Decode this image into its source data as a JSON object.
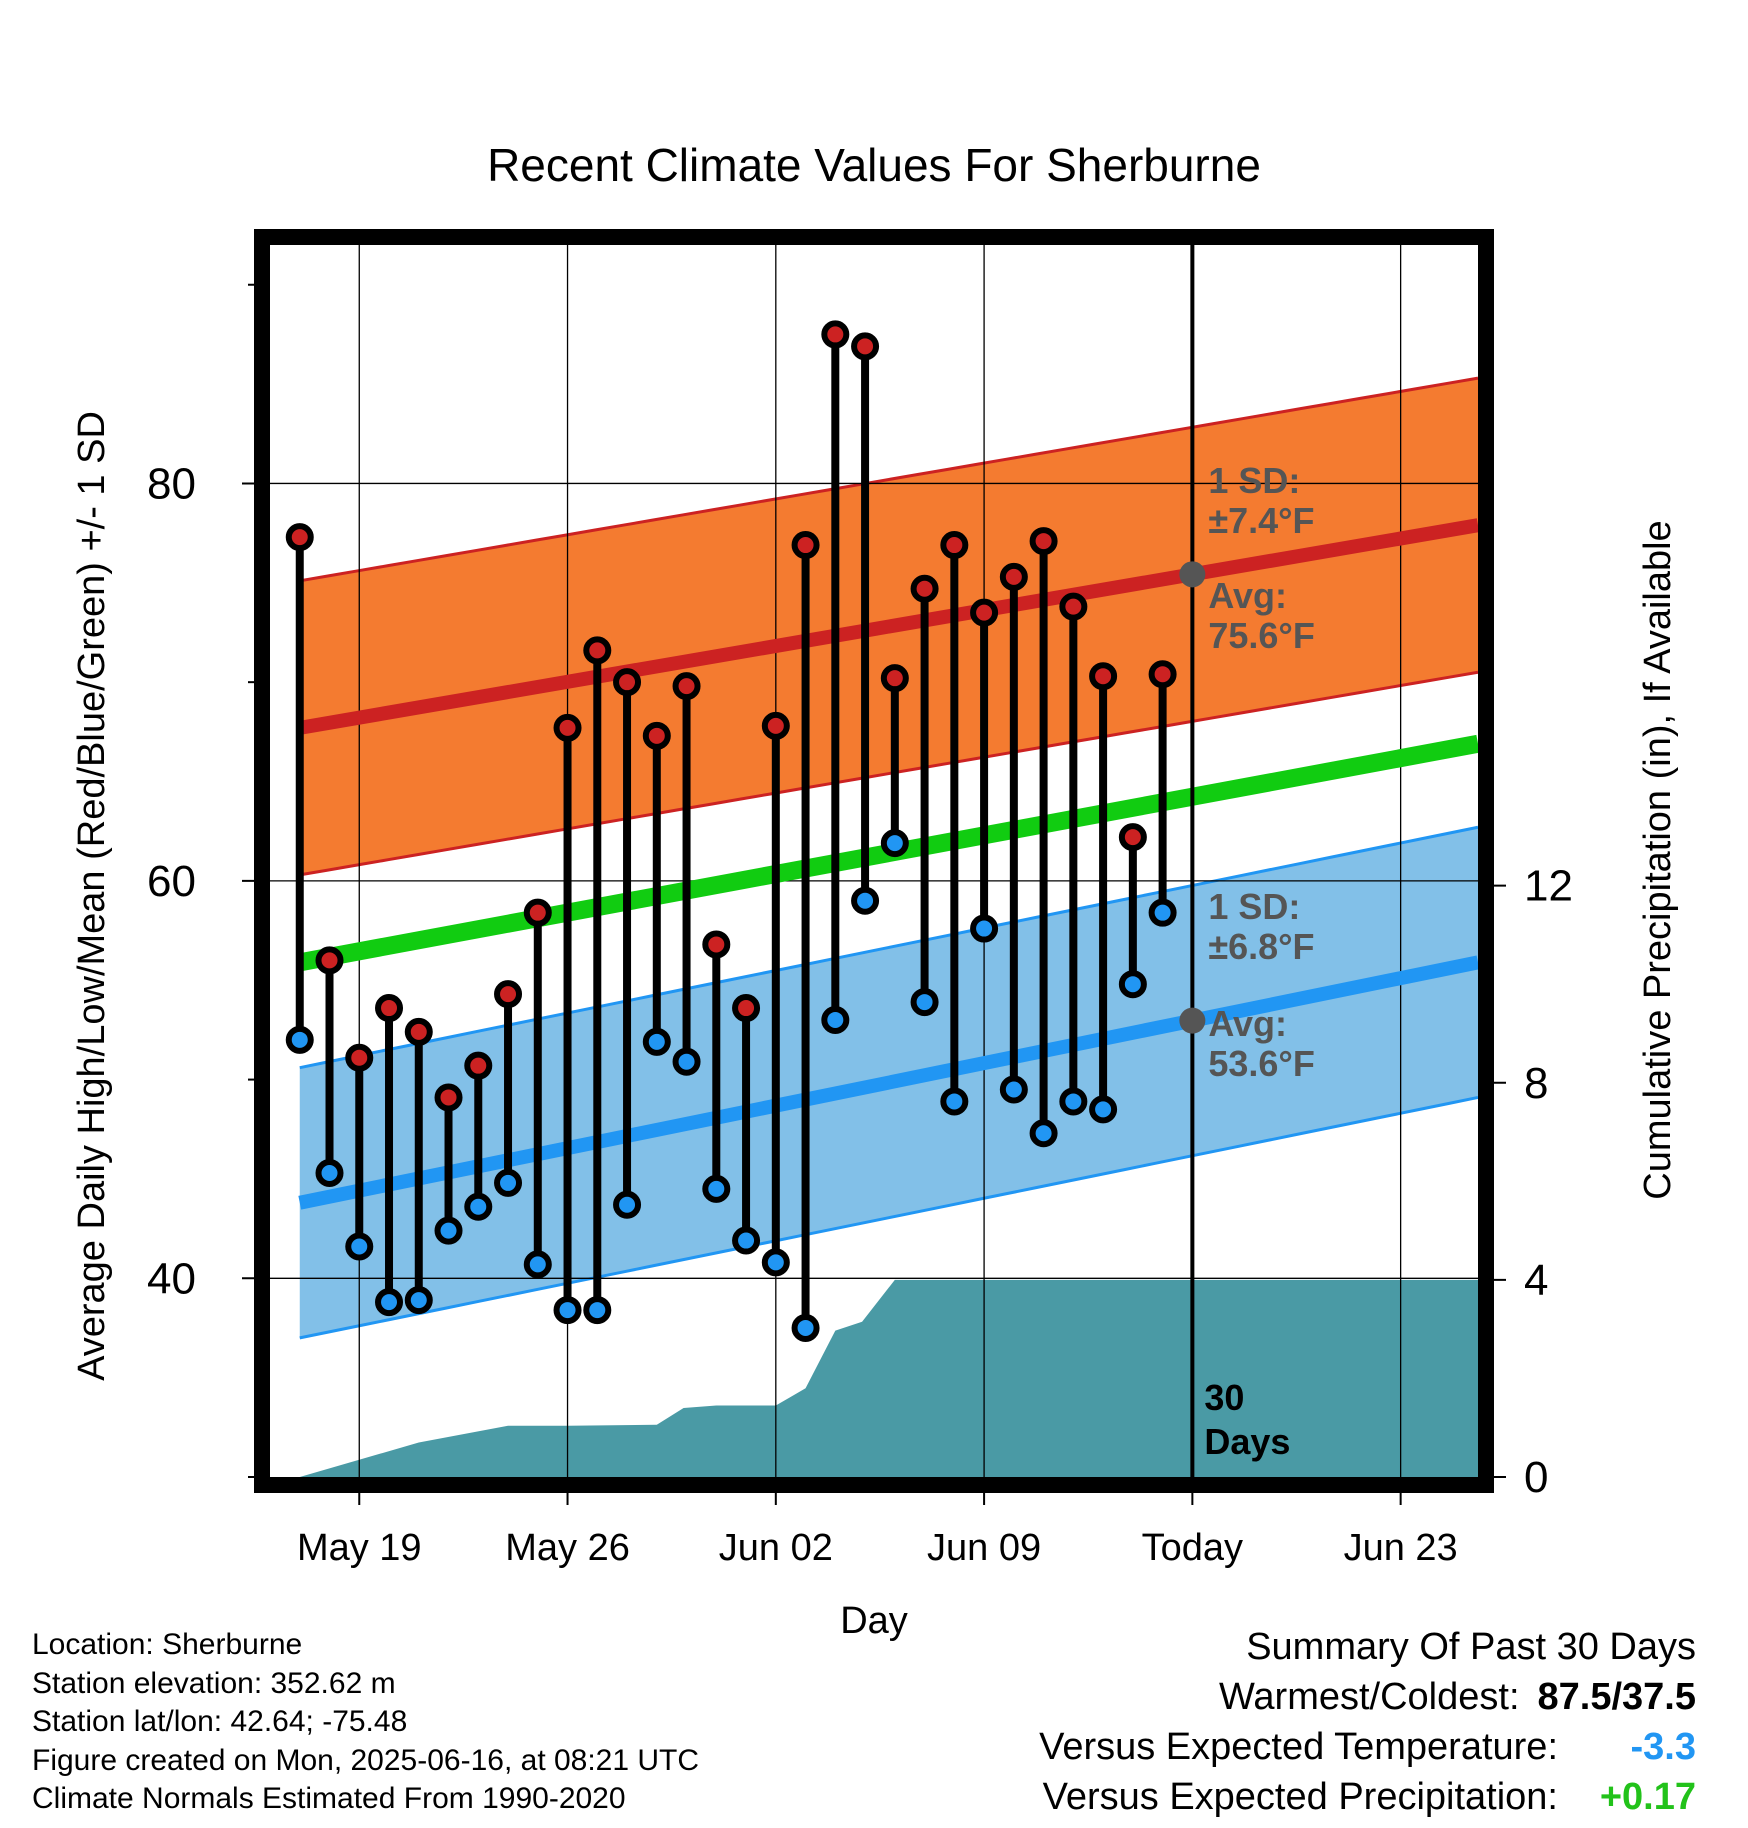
{
  "chart_data": {
    "type": "line",
    "title": "Recent Climate Values For Sherburne",
    "xlabel": "Day",
    "ylabel": "Average Daily High/Low/Mean (Red/Blue/Green) +/- 1 SD",
    "y2label": "Cumulative Precipitation (in), If Available",
    "x_ticks": [
      "May 19",
      "May 26",
      "Jun 02",
      "Jun 09",
      "Today",
      "Jun 23"
    ],
    "y_ticks": [
      "40",
      "60",
      "80"
    ],
    "y2_ticks": [
      "0",
      "4",
      "8",
      "12"
    ],
    "xlim_days": [
      -31,
      9.6
    ],
    "ylim": [
      30,
      92
    ],
    "y2lim": [
      0,
      25
    ],
    "dates": [
      "May 17",
      "May 18",
      "May 19",
      "May 20",
      "May 21",
      "May 22",
      "May 23",
      "May 24",
      "May 25",
      "May 26",
      "May 27",
      "May 28",
      "May 29",
      "May 30",
      "May 31",
      "Jun 01",
      "Jun 02",
      "Jun 03",
      "Jun 04",
      "Jun 05",
      "Jun 06",
      "Jun 07",
      "Jun 08",
      "Jun 09",
      "Jun 10",
      "Jun 11",
      "Jun 12",
      "Jun 13",
      "Jun 14",
      "Jun 15"
    ],
    "series": [
      {
        "name": "High",
        "color": "#cc2222",
        "values": [
          77.3,
          56.0,
          51.1,
          53.6,
          52.4,
          49.1,
          50.7,
          54.3,
          58.4,
          67.7,
          71.6,
          70.0,
          67.3,
          69.8,
          56.8,
          53.6,
          67.8,
          76.9,
          87.5,
          86.9,
          70.2,
          74.7,
          76.9,
          73.5,
          75.3,
          77.1,
          73.8,
          70.3,
          62.2,
          70.4
        ]
      },
      {
        "name": "Low",
        "color": "#2196f3",
        "values": [
          52.0,
          45.3,
          41.6,
          38.8,
          38.9,
          42.4,
          43.6,
          44.8,
          40.7,
          38.4,
          38.4,
          43.7,
          51.9,
          50.9,
          44.5,
          41.9,
          40.8,
          37.5,
          53.0,
          59.0,
          61.9,
          53.9,
          48.9,
          57.6,
          49.5,
          47.3,
          48.9,
          48.5,
          54.8,
          58.4
        ]
      }
    ],
    "normals": {
      "high_avg": [
        67.7,
        77.9
      ],
      "high_sd": 7.4,
      "low_avg": [
        43.8,
        55.9
      ],
      "low_sd": 6.8,
      "mean_avg": [
        55.9,
        66.9
      ]
    },
    "precip_cumulative": {
      "days": [
        -30,
        -26,
        -23,
        -21,
        -18,
        -17.1,
        -16,
        -14,
        -13,
        -12,
        -11.1,
        -10,
        -9,
        -8,
        -7,
        -6,
        9.6
      ],
      "values": [
        0,
        0.7,
        1.04,
        1.04,
        1.06,
        1.4,
        1.45,
        1.45,
        1.8,
        2.97,
        3.15,
        4.0,
        4.0,
        4.0,
        4.0,
        4.0,
        4.0
      ]
    },
    "annotations": {
      "high_sd": "1 SD:\n±7.4°F",
      "high_avg": "Avg:\n75.6°F",
      "low_sd": "1 SD:\n±6.8°F",
      "low_avg": "Avg:\n53.6°F",
      "days": "30\nDays"
    },
    "colors": {
      "high_band": "#f47b30",
      "high_line": "#cc2222",
      "low_band": "#82c0e8",
      "low_line": "#2196f3",
      "mean_line": "#11cc11",
      "precip": "#4a9aa5",
      "annotation": "#555555"
    }
  },
  "info": {
    "location": "Location: Sherburne",
    "elevation": "Station elevation: 352.62 m",
    "latlon": "Station lat/lon: 42.64; -75.48",
    "created": "Figure created on Mon, 2025-06-16, at 08:21 UTC",
    "normals": "Climate Normals Estimated From 1990-2020"
  },
  "summary": {
    "title": "Summary Of Past 30 Days",
    "warmest_label": "Warmest/Coldest:",
    "warmest_value": "87.5/37.5",
    "temp_label": "Versus Expected Temperature:",
    "temp_value": "-3.3",
    "precip_label": "Versus Expected Precipitation:",
    "precip_value": "+0.17"
  }
}
